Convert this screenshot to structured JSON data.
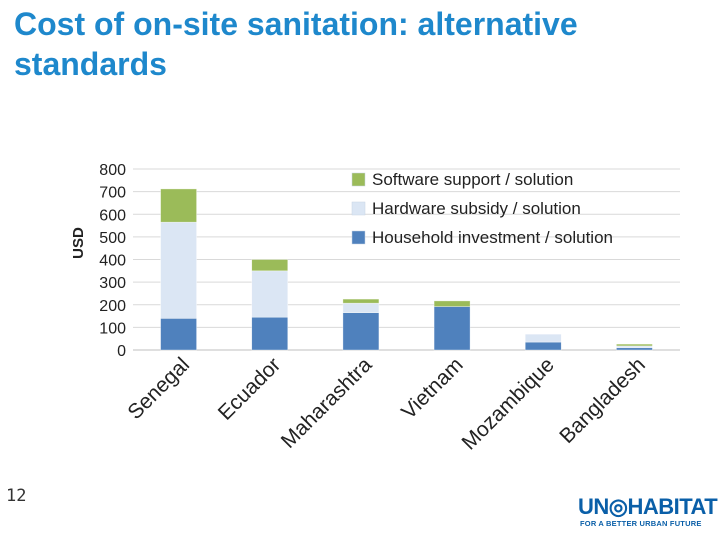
{
  "slide": {
    "title": "Cost of on-site sanitation: alternative standards",
    "page_number": "12"
  },
  "logo": {
    "main": "UN◎HABITAT",
    "tagline": "FOR A BETTER URBAN FUTURE"
  },
  "chart_data": {
    "type": "bar",
    "stacked": true,
    "title": "",
    "xlabel": "",
    "ylabel": "USD",
    "ylim": [
      0,
      800
    ],
    "yticks": [
      "0",
      "100",
      "200",
      "300",
      "400",
      "500",
      "600",
      "700",
      "800"
    ],
    "categories": [
      "Senegal",
      "Ecuador",
      "Maharashtra",
      "Vietnam",
      "Mozambique",
      "Bangladesh"
    ],
    "series": [
      {
        "name": "Household investment / solution",
        "color": "#4f81bd",
        "values": [
          140,
          145,
          165,
          192,
          35,
          10
        ]
      },
      {
        "name": "Hardware subsidy / solution",
        "color": "#dbe6f4",
        "values": [
          425,
          205,
          42,
          0,
          35,
          8
        ]
      },
      {
        "name": "Software support / solution",
        "color": "#9bbb59",
        "values": [
          147,
          50,
          18,
          25,
          0,
          8
        ]
      }
    ],
    "legend_order": [
      "Software support / solution",
      "Hardware subsidy / solution",
      "Household investment / solution"
    ],
    "legend_position": "top-right",
    "grid": true
  }
}
